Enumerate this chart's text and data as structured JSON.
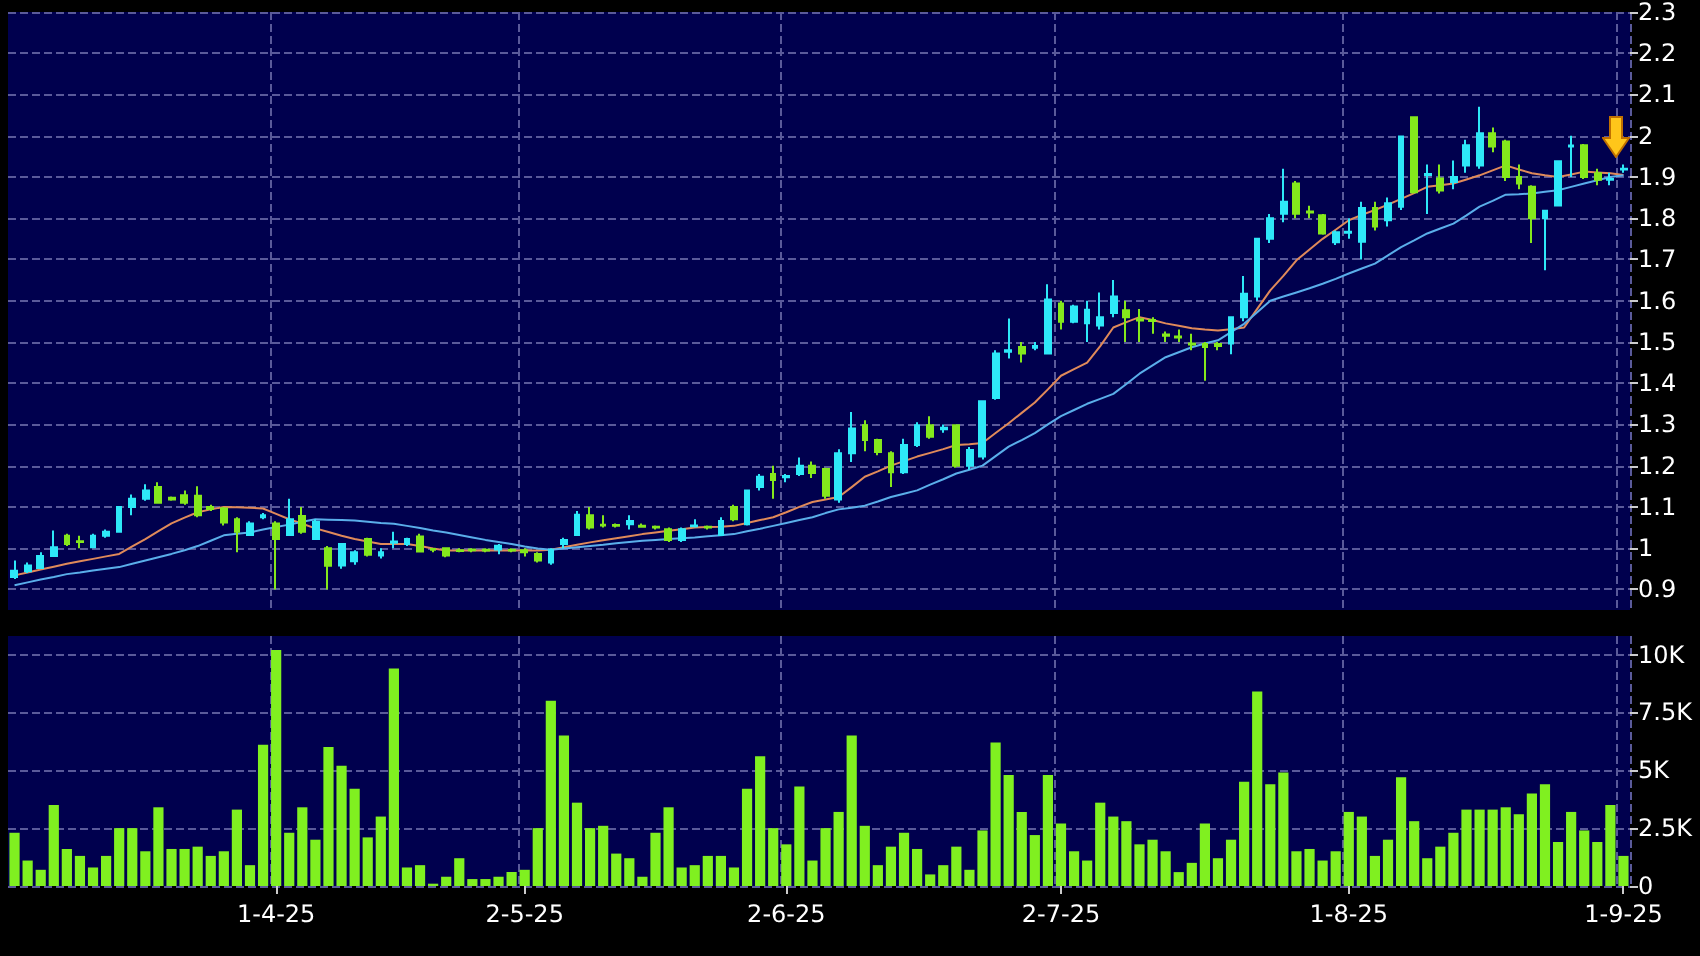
{
  "chart_data": [
    {
      "type": "candlestick",
      "tick_labels": "y",
      "grid": true,
      "categories": [
        null,
        null,
        null,
        null,
        null,
        null,
        null,
        null,
        null,
        null,
        null,
        null,
        null,
        null,
        null,
        null,
        null,
        null,
        null,
        null,
        null,
        null,
        null,
        null,
        null,
        null,
        null,
        null,
        null,
        null,
        null,
        null,
        null,
        null,
        null,
        null,
        null,
        null,
        null,
        null,
        null,
        null,
        null,
        null,
        null,
        null,
        null,
        null,
        null,
        null,
        null,
        null,
        null,
        null,
        null,
        null,
        null,
        null,
        null,
        null,
        null,
        null,
        null,
        null,
        null,
        null,
        null,
        null,
        null,
        null,
        null,
        null,
        null,
        null,
        null,
        null,
        null,
        null,
        null,
        null,
        null,
        null,
        null,
        null,
        null,
        null,
        null,
        null,
        null,
        null,
        null,
        null,
        null,
        null,
        null,
        null,
        null,
        null,
        null,
        null,
        null,
        null,
        null,
        null,
        null,
        null,
        null,
        null,
        null,
        null,
        null,
        null,
        null,
        null,
        null,
        null,
        null,
        null,
        null,
        null,
        null,
        null,
        null,
        null
      ],
      "ylim": [
        0.85,
        2.3
      ],
      "yticks": [
        0.9,
        1,
        1.1,
        1.2,
        1.3,
        1.4,
        1.5,
        1.6,
        1.7,
        1.8,
        1.9,
        2,
        2.1,
        2.2,
        2.3
      ],
      "ohlc": [
        [
          0.93,
          0.97,
          0.925,
          0.945
        ],
        [
          0.944,
          0.965,
          0.94,
          0.958
        ],
        [
          0.952,
          0.99,
          0.95,
          0.981
        ],
        [
          0.981,
          1.043,
          0.98,
          1.002
        ],
        [
          1.03,
          1.035,
          1.005,
          1.01
        ],
        [
          1.017,
          1.03,
          1.0,
          1.015
        ],
        [
          1.002,
          1.035,
          1.0,
          1.03
        ],
        [
          1.03,
          1.045,
          1.025,
          1.04
        ],
        [
          1.04,
          1.1,
          1.04,
          1.1
        ],
        [
          1.1,
          1.13,
          1.08,
          1.12
        ],
        [
          1.12,
          1.155,
          1.115,
          1.14
        ],
        [
          1.148,
          1.16,
          1.11,
          1.11
        ],
        [
          1.122,
          1.125,
          1.115,
          1.118
        ],
        [
          1.128,
          1.14,
          1.105,
          1.11
        ],
        [
          1.127,
          1.15,
          1.075,
          1.08
        ],
        [
          1.1,
          1.105,
          1.09,
          1.095
        ],
        [
          1.096,
          1.1,
          1.055,
          1.062
        ],
        [
          1.07,
          1.075,
          0.99,
          1.04
        ],
        [
          1.032,
          1.065,
          1.03,
          1.06
        ],
        [
          1.075,
          1.085,
          1.07,
          1.08
        ],
        [
          1.06,
          1.065,
          0.9,
          1.022
        ],
        [
          1.032,
          1.12,
          1.03,
          1.07
        ],
        [
          1.078,
          1.1,
          1.035,
          1.04
        ],
        [
          1.022,
          1.07,
          1.02,
          1.064
        ],
        [
          1.0,
          1.005,
          0.9,
          0.957
        ],
        [
          0.958,
          1.01,
          0.95,
          1.01
        ],
        [
          0.968,
          0.995,
          0.96,
          0.99
        ],
        [
          1.022,
          1.025,
          0.98,
          0.984
        ],
        [
          0.982,
          1.0,
          0.975,
          0.99
        ],
        [
          1.013,
          1.04,
          1.0,
          1.016
        ],
        [
          1.01,
          1.025,
          1.005,
          1.022
        ],
        [
          1.028,
          1.035,
          0.99,
          0.992
        ],
        [
          0.998,
          1.0,
          0.99,
          0.996
        ],
        [
          1.0,
          1.0,
          0.978,
          0.982
        ],
        [
          0.995,
          1.0,
          0.99,
          0.993
        ],
        [
          0.997,
          1.0,
          0.99,
          0.995
        ],
        [
          0.996,
          1.0,
          0.99,
          0.994
        ],
        [
          0.997,
          1.01,
          0.985,
          1.006
        ],
        [
          0.996,
          1.0,
          0.99,
          0.994
        ],
        [
          0.995,
          1.0,
          0.98,
          0.99
        ],
        [
          0.986,
          0.99,
          0.965,
          0.97
        ],
        [
          0.965,
          1.0,
          0.96,
          0.996
        ],
        [
          1.01,
          1.025,
          1.0,
          1.02
        ],
        [
          1.032,
          1.09,
          1.03,
          1.081
        ],
        [
          1.08,
          1.1,
          1.045,
          1.05
        ],
        [
          1.057,
          1.08,
          1.05,
          1.055
        ],
        [
          1.056,
          1.06,
          1.05,
          1.054
        ],
        [
          1.058,
          1.08,
          1.045,
          1.066
        ],
        [
          1.054,
          1.06,
          1.05,
          1.052
        ],
        [
          1.052,
          1.055,
          1.045,
          1.05
        ],
        [
          1.046,
          1.05,
          1.015,
          1.02
        ],
        [
          1.02,
          1.05,
          1.015,
          1.046
        ],
        [
          1.053,
          1.07,
          1.05,
          1.055
        ],
        [
          1.052,
          1.055,
          1.045,
          1.05
        ],
        [
          1.032,
          1.075,
          1.03,
          1.066
        ],
        [
          1.1,
          1.105,
          1.065,
          1.07
        ],
        [
          1.058,
          1.14,
          1.055,
          1.14
        ],
        [
          1.148,
          1.18,
          1.14,
          1.173
        ],
        [
          1.18,
          1.2,
          1.12,
          1.165
        ],
        [
          1.172,
          1.18,
          1.16,
          1.175
        ],
        [
          1.18,
          1.22,
          1.175,
          1.2
        ],
        [
          1.2,
          1.21,
          1.17,
          1.182
        ],
        [
          1.192,
          1.195,
          1.12,
          1.127
        ],
        [
          1.118,
          1.24,
          1.11,
          1.23
        ],
        [
          1.23,
          1.33,
          1.209,
          1.29
        ],
        [
          1.298,
          1.31,
          1.235,
          1.262
        ],
        [
          1.262,
          1.265,
          1.225,
          1.233
        ],
        [
          1.23,
          1.235,
          1.148,
          1.184
        ],
        [
          1.184,
          1.265,
          1.18,
          1.25
        ],
        [
          1.25,
          1.305,
          1.245,
          1.298
        ],
        [
          1.298,
          1.32,
          1.265,
          1.27
        ],
        [
          1.288,
          1.3,
          1.28,
          1.292
        ],
        [
          1.298,
          1.3,
          1.195,
          1.2
        ],
        [
          1.2,
          1.245,
          1.19,
          1.238
        ],
        [
          1.222,
          1.356,
          1.215,
          1.356
        ],
        [
          1.364,
          1.48,
          1.36,
          1.472
        ],
        [
          1.476,
          1.557,
          1.46,
          1.48
        ],
        [
          1.488,
          1.5,
          1.45,
          1.472
        ],
        [
          1.486,
          1.5,
          1.48,
          1.49
        ],
        [
          1.472,
          1.64,
          1.47,
          1.603
        ],
        [
          1.593,
          1.6,
          1.53,
          1.549
        ],
        [
          1.549,
          1.59,
          1.545,
          1.586
        ],
        [
          1.545,
          1.6,
          1.5,
          1.578
        ],
        [
          1.54,
          1.62,
          1.53,
          1.56
        ],
        [
          1.57,
          1.65,
          1.56,
          1.61
        ],
        [
          1.577,
          1.6,
          1.5,
          1.56
        ],
        [
          1.555,
          1.58,
          1.5,
          1.552
        ],
        [
          1.553,
          1.56,
          1.52,
          1.551
        ],
        [
          1.518,
          1.525,
          1.5,
          1.515
        ],
        [
          1.513,
          1.53,
          1.5,
          1.511
        ],
        [
          1.496,
          1.52,
          1.48,
          1.494
        ],
        [
          1.495,
          1.5,
          1.406,
          1.488
        ],
        [
          1.495,
          1.5,
          1.48,
          1.49
        ],
        [
          1.496,
          1.56,
          1.47,
          1.56
        ],
        [
          1.56,
          1.66,
          1.55,
          1.617
        ],
        [
          1.61,
          1.75,
          1.6,
          1.75
        ],
        [
          1.75,
          1.81,
          1.74,
          1.8
        ],
        [
          1.811,
          1.92,
          1.79,
          1.84
        ],
        [
          1.884,
          1.89,
          1.8,
          1.811
        ],
        [
          1.816,
          1.83,
          1.8,
          1.814
        ],
        [
          1.807,
          1.81,
          1.76,
          1.763
        ],
        [
          1.742,
          1.77,
          1.735,
          1.766
        ],
        [
          1.765,
          1.8,
          1.75,
          1.767
        ],
        [
          1.743,
          1.84,
          1.7,
          1.825
        ],
        [
          1.825,
          1.84,
          1.77,
          1.78
        ],
        [
          1.795,
          1.85,
          1.78,
          1.836
        ],
        [
          1.828,
          2.0,
          1.82,
          1.998
        ],
        [
          2.045,
          2.045,
          1.86,
          1.863
        ],
        [
          1.905,
          1.93,
          1.81,
          1.907
        ],
        [
          1.896,
          1.93,
          1.86,
          1.867
        ],
        [
          1.888,
          1.94,
          1.87,
          1.9
        ],
        [
          1.928,
          1.99,
          1.91,
          1.977
        ],
        [
          1.928,
          2.07,
          1.92,
          2.006
        ],
        [
          2.006,
          2.02,
          1.96,
          1.974
        ],
        [
          1.986,
          1.99,
          1.89,
          1.9
        ],
        [
          1.9,
          1.93,
          1.87,
          1.884
        ],
        [
          1.876,
          1.88,
          1.74,
          1.8
        ],
        [
          1.8,
          1.82,
          1.674,
          1.818
        ],
        [
          1.831,
          1.94,
          1.83,
          1.938
        ],
        [
          1.974,
          2.0,
          1.9,
          1.976
        ],
        [
          1.977,
          1.98,
          1.895,
          1.9
        ],
        [
          1.909,
          1.92,
          1.88,
          1.893
        ],
        [
          1.893,
          1.91,
          1.88,
          1.895
        ],
        [
          1.918,
          1.93,
          1.91,
          1.92
        ]
      ],
      "colors": [
        "#2ee8f8",
        "#2ee8f8",
        "#2ee8f8",
        "#2ee8f8",
        "#84e81c",
        "#84e81c",
        "#2ee8f8",
        "#2ee8f8",
        "#2ee8f8",
        "#2ee8f8",
        "#2ee8f8",
        "#84e81c",
        "#84e81c",
        "#84e81c",
        "#84e81c",
        "#84e81c",
        "#84e81c",
        "#84e81c",
        "#2ee8f8",
        "#2ee8f8",
        "#84e81c",
        "#2ee8f8",
        "#84e81c",
        "#2ee8f8",
        "#84e81c",
        "#2ee8f8",
        "#2ee8f8",
        "#84e81c",
        "#2ee8f8",
        "#2ee8f8",
        "#2ee8f8",
        "#84e81c",
        "#84e81c",
        "#84e81c",
        "#84e81c",
        "#84e81c",
        "#84e81c",
        "#2ee8f8",
        "#84e81c",
        "#84e81c",
        "#84e81c",
        "#2ee8f8",
        "#2ee8f8",
        "#2ee8f8",
        "#84e81c",
        "#84e81c",
        "#84e81c",
        "#2ee8f8",
        "#84e81c",
        "#84e81c",
        "#84e81c",
        "#2ee8f8",
        "#2ee8f8",
        "#84e81c",
        "#2ee8f8",
        "#84e81c",
        "#2ee8f8",
        "#2ee8f8",
        "#84e81c",
        "#2ee8f8",
        "#2ee8f8",
        "#84e81c",
        "#84e81c",
        "#2ee8f8",
        "#2ee8f8",
        "#84e81c",
        "#84e81c",
        "#84e81c",
        "#2ee8f8",
        "#2ee8f8",
        "#84e81c",
        "#2ee8f8",
        "#84e81c",
        "#2ee8f8",
        "#2ee8f8",
        "#2ee8f8",
        "#2ee8f8",
        "#84e81c",
        "#2ee8f8",
        "#2ee8f8",
        "#84e81c",
        "#2ee8f8",
        "#2ee8f8",
        "#2ee8f8",
        "#2ee8f8",
        "#84e81c",
        "#84e81c",
        "#84e81c",
        "#84e81c",
        "#84e81c",
        "#84e81c",
        "#84e81c",
        "#84e81c",
        "#2ee8f8",
        "#2ee8f8",
        "#2ee8f8",
        "#2ee8f8",
        "#2ee8f8",
        "#84e81c",
        "#84e81c",
        "#84e81c",
        "#2ee8f8",
        "#2ee8f8",
        "#2ee8f8",
        "#84e81c",
        "#2ee8f8",
        "#2ee8f8",
        "#84e81c",
        "#2ee8f8",
        "#84e81c",
        "#2ee8f8",
        "#2ee8f8",
        "#2ee8f8",
        "#84e81c",
        "#84e81c",
        "#84e81c",
        "#84e81c",
        "#2ee8f8",
        "#2ee8f8",
        "#2ee8f8",
        "#84e81c",
        "#84e81c",
        "#2ee8f8",
        "#2ee8f8"
      ],
      "series": [
        {
          "type": "line",
          "color": "#e08a5a",
          "values": [
            0.934,
            0.941,
            0.948,
            0.955,
            0.962,
            0.968,
            0.974,
            0.98,
            0.986,
            1.004,
            1.022,
            1.041,
            1.06,
            1.074,
            1.087,
            1.094,
            1.1,
            1.099,
            1.098,
            1.096,
            1.083,
            1.07,
            1.059,
            1.048,
            1.039,
            1.03,
            1.022,
            1.016,
            1.01,
            1.01,
            1.01,
            1.005,
            0.999,
            0.994,
            0.994,
            0.994,
            0.994,
            0.994,
            0.994,
            0.994,
            0.994,
            0.996,
            1.002,
            1.008,
            1.014,
            1.019,
            1.024,
            1.029,
            1.034,
            1.038,
            1.042,
            1.046,
            1.05,
            1.051,
            1.052,
            1.054,
            1.061,
            1.068,
            1.075,
            1.087,
            1.1,
            1.112,
            1.118,
            1.124,
            1.148,
            1.173,
            1.186,
            1.2,
            1.211,
            1.222,
            1.231,
            1.24,
            1.25,
            1.252,
            1.255,
            1.279,
            1.303,
            1.328,
            1.353,
            1.385,
            1.418,
            1.434,
            1.45,
            1.49,
            1.535,
            1.548,
            1.56,
            1.553,
            1.545,
            1.539,
            1.533,
            1.53,
            1.528,
            1.531,
            1.535,
            1.58,
            1.625,
            1.66,
            1.698,
            1.724,
            1.75,
            1.772,
            1.795,
            1.808,
            1.82,
            1.833,
            1.847,
            1.861,
            1.876,
            1.88,
            1.884,
            1.894,
            1.904,
            1.916,
            1.928,
            1.918,
            1.909,
            1.904,
            1.9,
            1.906,
            1.913,
            1.911,
            1.909,
            1.905
          ]
        },
        {
          "type": "line",
          "color": "#5aaeea",
          "values": [
            0.91,
            0.917,
            0.924,
            0.93,
            0.937,
            0.941,
            0.946,
            0.95,
            0.954,
            0.962,
            0.97,
            0.978,
            0.986,
            0.995,
            1.005,
            1.018,
            1.031,
            1.035,
            1.038,
            1.045,
            1.051,
            1.057,
            1.064,
            1.07,
            1.069,
            1.068,
            1.067,
            1.064,
            1.061,
            1.059,
            1.054,
            1.049,
            1.043,
            1.038,
            1.032,
            1.026,
            1.02,
            1.015,
            1.01,
            1.004,
            0.999,
            0.996,
            0.999,
            1.002,
            1.005,
            1.008,
            1.012,
            1.015,
            1.018,
            1.02,
            1.022,
            1.024,
            1.026,
            1.029,
            1.031,
            1.034,
            1.041,
            1.047,
            1.054,
            1.061,
            1.068,
            1.075,
            1.085,
            1.094,
            1.098,
            1.103,
            1.113,
            1.124,
            1.132,
            1.14,
            1.154,
            1.167,
            1.181,
            1.19,
            1.2,
            1.223,
            1.246,
            1.262,
            1.279,
            1.3,
            1.32,
            1.335,
            1.35,
            1.362,
            1.374,
            1.398,
            1.423,
            1.443,
            1.463,
            1.475,
            1.487,
            1.496,
            1.504,
            1.524,
            1.544,
            1.572,
            1.6,
            1.61,
            1.62,
            1.63,
            1.641,
            1.653,
            1.666,
            1.678,
            1.69,
            1.71,
            1.73,
            1.746,
            1.763,
            1.775,
            1.787,
            1.807,
            1.828,
            1.842,
            1.857,
            1.858,
            1.86,
            1.864,
            1.868,
            1.876,
            1.884,
            1.892,
            1.9,
            1.904
          ]
        }
      ]
    },
    {
      "type": "bar",
      "grid": true,
      "color": "#80f020",
      "categories": [
        null,
        null,
        null,
        null,
        null,
        null,
        null,
        null,
        null,
        null,
        null,
        null,
        null,
        null,
        null,
        null,
        null,
        null,
        null,
        null,
        "1-4-25",
        null,
        null,
        null,
        null,
        null,
        null,
        null,
        null,
        null,
        null,
        null,
        null,
        null,
        null,
        null,
        null,
        null,
        null,
        "2-5-25",
        null,
        null,
        null,
        null,
        null,
        null,
        null,
        null,
        null,
        null,
        null,
        null,
        null,
        null,
        null,
        null,
        null,
        null,
        null,
        "2-6-25",
        null,
        null,
        null,
        null,
        null,
        null,
        null,
        null,
        null,
        null,
        null,
        null,
        null,
        null,
        null,
        null,
        null,
        null,
        null,
        null,
        "2-7-25",
        null,
        null,
        null,
        null,
        null,
        null,
        null,
        null,
        null,
        null,
        null,
        null,
        null,
        null,
        null,
        null,
        null,
        null,
        null,
        null,
        null,
        "1-8-25",
        null,
        null,
        null,
        null,
        null,
        null,
        null,
        null,
        null,
        null,
        null,
        null,
        null,
        null,
        null,
        null,
        null,
        null,
        null,
        null,
        "1-9-25"
      ],
      "ylim": [
        0,
        10800
      ],
      "yticks": [
        0,
        {
          "value": 2500,
          "label": "2.5K"
        },
        {
          "value": 5000,
          "label": "5K"
        },
        {
          "value": 7500,
          "label": "7.5K"
        },
        {
          "value": 10000,
          "label": "10K"
        }
      ],
      "values": [
        2300,
        1100,
        700,
        3500,
        1600,
        1300,
        800,
        1300,
        2500,
        2500,
        1500,
        3400,
        1600,
        1600,
        1700,
        1300,
        1500,
        3300,
        900,
        6100,
        10200,
        2300,
        3400,
        2000,
        6000,
        5200,
        4200,
        2100,
        3000,
        9400,
        800,
        900,
        100,
        400,
        1200,
        300,
        300,
        400,
        600,
        700,
        2500,
        8000,
        6500,
        3600,
        2500,
        2600,
        1400,
        1200,
        400,
        2300,
        3400,
        800,
        900,
        1300,
        1300,
        800,
        4200,
        5600,
        2500,
        1800,
        4300,
        1100,
        2500,
        3200,
        6500,
        2600,
        900,
        1700,
        2300,
        1600,
        500,
        900,
        1700,
        700,
        2400,
        6200,
        4800,
        3200,
        2200,
        4800,
        2700,
        1500,
        1100,
        3600,
        3000,
        2800,
        1800,
        2000,
        1500,
        600,
        1000,
        2700,
        1200,
        2000,
        4500,
        8400,
        4400,
        4900,
        1500,
        1600,
        1100,
        1500,
        3200,
        3000,
        1300,
        2000,
        4700,
        2800,
        1200,
        1700,
        2300,
        3300,
        3300,
        3300,
        3400,
        3100,
        4000,
        4400,
        1900,
        3200,
        2400,
        1900,
        3500,
        1300
      ]
    }
  ]
}
